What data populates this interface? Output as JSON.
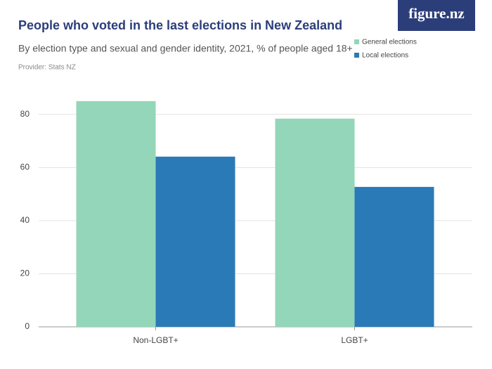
{
  "chart_data": {
    "type": "bar",
    "title": "People who voted in the last elections in New Zealand",
    "subtitle": "By election type and sexual and gender identity, 2021, % of people aged 18+",
    "provider": "Provider: Stats NZ",
    "logo": "figure.nz",
    "categories": [
      "Non-LGBT+",
      "LGBT+"
    ],
    "series": [
      {
        "name": "General elections",
        "color": "#94d6b9",
        "values": [
          85,
          78.4
        ]
      },
      {
        "name": "Local elections",
        "color": "#2a7ab8",
        "values": [
          64.1,
          52.7
        ]
      }
    ],
    "ylim": [
      0,
      90
    ],
    "yticks": [
      0,
      20,
      40,
      60,
      80
    ],
    "grid": true
  }
}
